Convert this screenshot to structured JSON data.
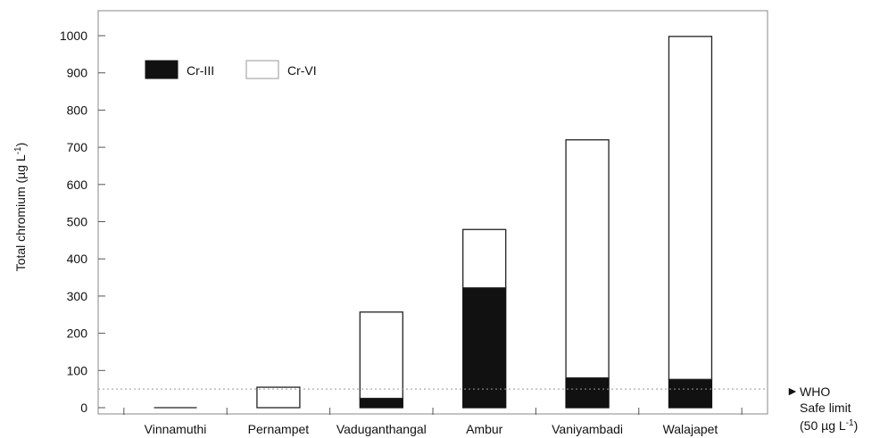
{
  "chart_data": {
    "type": "bar",
    "stacked": true,
    "categories": [
      "Vinnamuthi",
      "Pernampet",
      "Vaduganthangal",
      "Ambur",
      "Vaniyambadi",
      "Walajapet"
    ],
    "series": [
      {
        "name": "Cr-III",
        "values": [
          0,
          0,
          25,
          322,
          80,
          76
        ],
        "color": "#111111"
      },
      {
        "name": "Cr-VI",
        "values": [
          0,
          55,
          232,
          157,
          640,
          922
        ],
        "color": "#ffffff"
      }
    ],
    "ylabel": "Total chromium (µg L",
    "ylabel_sup": "-1",
    "ylabel_close": ")",
    "ylim": [
      0,
      1000
    ],
    "yticks": [
      0,
      100,
      200,
      300,
      400,
      500,
      600,
      700,
      800,
      900,
      1000
    ],
    "grid": false,
    "legend_placement": "top-left",
    "reference_line": {
      "value": 50,
      "label_lines": [
        "WHO",
        "Safe limit"
      ],
      "label_last": "(50 µg L",
      "label_last_sup": "-1",
      "label_last_close": ")",
      "marker": "►"
    }
  }
}
